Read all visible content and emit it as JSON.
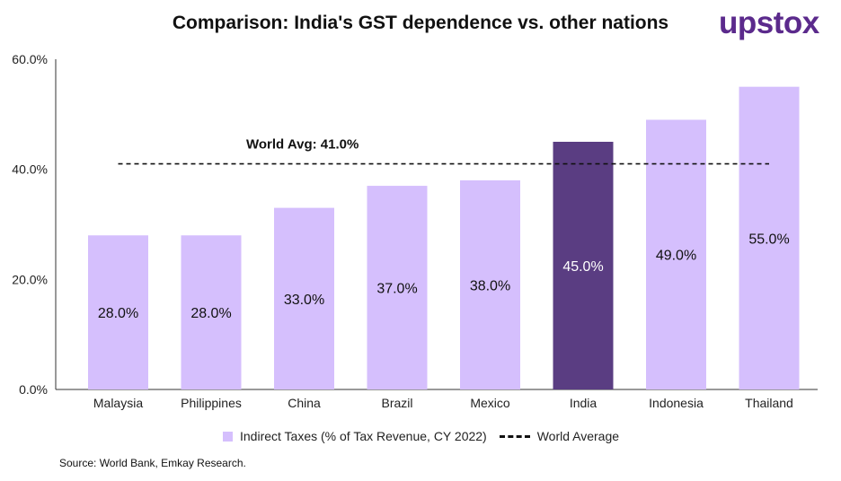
{
  "chart_data": {
    "type": "bar",
    "title": "Comparison: India's GST dependence vs. other nations",
    "categories": [
      "Malaysia",
      "Philippines",
      "China",
      "Brazil",
      "Mexico",
      "India",
      "Indonesia",
      "Thailand"
    ],
    "values": [
      28.0,
      28.0,
      33.0,
      37.0,
      38.0,
      45.0,
      49.0,
      55.0
    ],
    "value_labels": [
      "28.0%",
      "28.0%",
      "33.0%",
      "37.0%",
      "38.0%",
      "45.0%",
      "49.0%",
      "55.0%"
    ],
    "highlight_category": "India",
    "colors": {
      "bar": "#d5bffd",
      "highlight": "#5a3d82",
      "reference_line": "#111111"
    },
    "ylim": [
      0,
      60
    ],
    "yticks": [
      0,
      20,
      40,
      60
    ],
    "ytick_labels": [
      "0.0%",
      "20.0%",
      "40.0%",
      "60.0%"
    ],
    "reference_line": {
      "value": 41.0,
      "label": "World Avg: 41.0%",
      "style": "dashed"
    },
    "legend": [
      {
        "label": "Indirect Taxes (% of Tax Revenue, CY 2022)",
        "kind": "bar"
      },
      {
        "label": "World Average",
        "kind": "dashed-line"
      }
    ],
    "xlabel": "",
    "ylabel": ""
  },
  "brand": {
    "logo_text": "upstox",
    "color": "#5b2a8c"
  },
  "footer": {
    "source": "Source: World Bank, Emkay Research."
  }
}
